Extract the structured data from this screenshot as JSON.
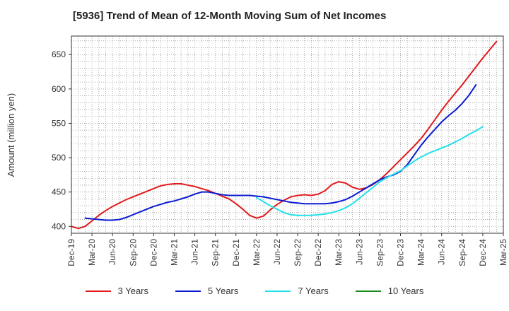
{
  "title": "[5936]  Trend of Mean of 12-Month Moving Sum of Net Incomes",
  "chart_data": {
    "type": "line",
    "title": "[5936]  Trend of Mean of 12-Month Moving Sum of Net Incomes",
    "ylabel": "Amount (million yen)",
    "xlabel": "",
    "ylim": [
      390,
      677
    ],
    "yticks": [
      400,
      450,
      500,
      550,
      600,
      650
    ],
    "xticks": [
      "Dec-19",
      "Mar-20",
      "Jun-20",
      "Sep-20",
      "Dec-20",
      "Mar-21",
      "Jun-21",
      "Sep-21",
      "Dec-21",
      "Mar-22",
      "Jun-22",
      "Sep-22",
      "Dec-22",
      "Mar-23",
      "Jun-23",
      "Sep-23",
      "Dec-23",
      "Mar-24",
      "Jun-24",
      "Sep-24",
      "Dec-24",
      "Mar-25"
    ],
    "grid": true,
    "legend_position": "bottom",
    "series": [
      {
        "name": "3 Years",
        "color": "#e31a1c",
        "start_index": 0,
        "values": [
          400,
          397,
          400,
          408,
          416,
          423,
          429,
          434,
          439,
          443,
          447,
          451,
          455,
          459,
          461,
          462,
          462,
          460,
          458,
          455,
          452,
          448,
          444,
          440,
          433,
          425,
          416,
          412,
          415,
          424,
          432,
          438,
          443,
          445,
          446,
          445,
          447,
          452,
          461,
          465,
          463,
          457,
          454,
          456,
          461,
          468,
          477,
          487,
          497,
          507,
          517,
          528,
          541,
          555,
          569,
          582,
          594,
          606,
          619,
          632,
          645,
          657,
          669
        ]
      },
      {
        "name": "5 Years",
        "color": "#0a1bd1",
        "start_index": 2,
        "values": [
          412,
          411,
          410,
          409,
          409,
          410,
          413,
          417,
          421,
          425,
          429,
          432,
          435,
          437,
          440,
          443,
          447,
          450,
          450,
          448,
          446,
          445,
          445,
          445,
          445,
          444,
          443,
          441,
          439,
          437,
          435,
          434,
          433,
          433,
          433,
          433,
          434,
          436,
          439,
          444,
          450,
          456,
          462,
          468,
          472,
          475,
          480,
          490,
          504,
          518,
          530,
          541,
          552,
          561,
          569,
          579,
          591,
          606
        ]
      },
      {
        "name": "7 Years",
        "color": "#22e0ea",
        "start_index": 27,
        "values": [
          442,
          436,
          430,
          425,
          420,
          417,
          416,
          416,
          416,
          417,
          418,
          420,
          423,
          427,
          433,
          441,
          449,
          457,
          465,
          471,
          476,
          481,
          488,
          495,
          501,
          506,
          510,
          514,
          518,
          523,
          528,
          534,
          539,
          545
        ]
      },
      {
        "name": "10 Years",
        "color": "#1a8a1a",
        "start_index": 0,
        "values": []
      }
    ]
  }
}
